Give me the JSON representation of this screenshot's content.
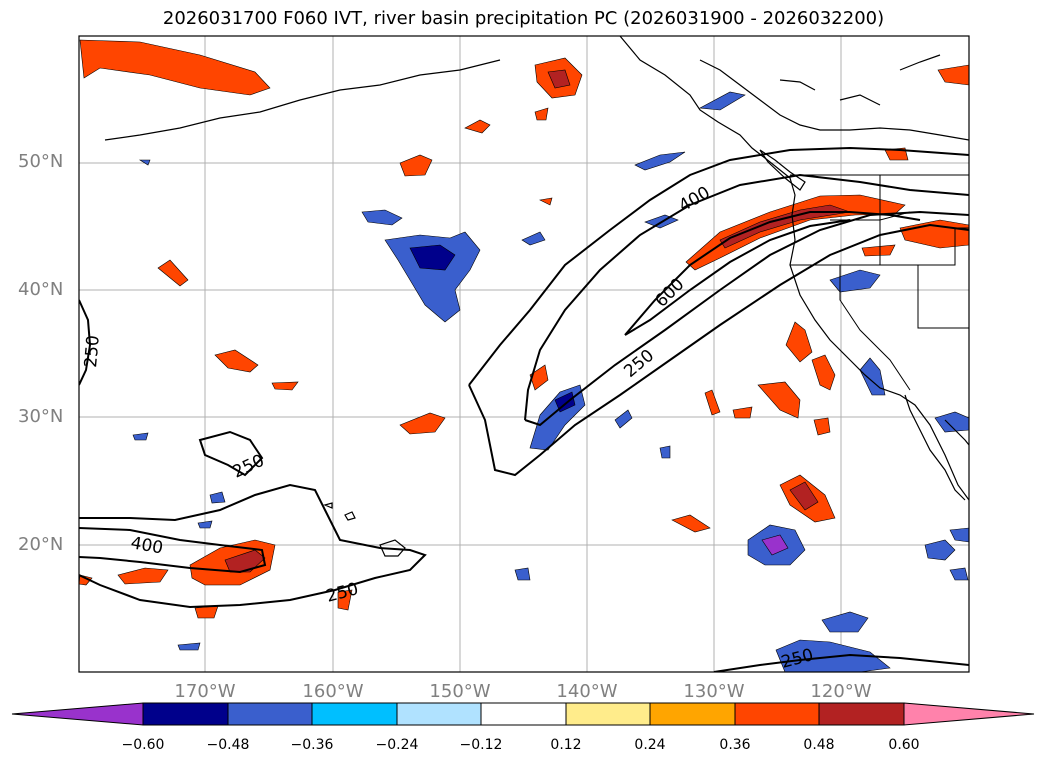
{
  "title": "2026031700 F060 IVT, river basin precipitation PC (2026031900 - 2026032200)",
  "lon_labels": [
    "170°W",
    "160°W",
    "150°W",
    "140°W",
    "130°W",
    "120°W"
  ],
  "lat_labels": [
    "50°N",
    "40°N",
    "30°N",
    "20°N"
  ],
  "contour_labels": [
    "250",
    "400",
    "600",
    "250",
    "250",
    "400",
    "250",
    "250"
  ],
  "colorbar": {
    "ticks": [
      "−0.60",
      "−0.48",
      "−0.36",
      "−0.24",
      "−0.12",
      "0.12",
      "0.24",
      "0.36",
      "0.48",
      "0.60"
    ],
    "colors": [
      "#9932cc",
      "#00008b",
      "#3a5fcd",
      "#00bfff",
      "#b0e2ff",
      "#ffffff",
      "#ffec8b",
      "#ffa500",
      "#ff4500",
      "#b22222",
      "#ff82ab"
    ]
  }
}
